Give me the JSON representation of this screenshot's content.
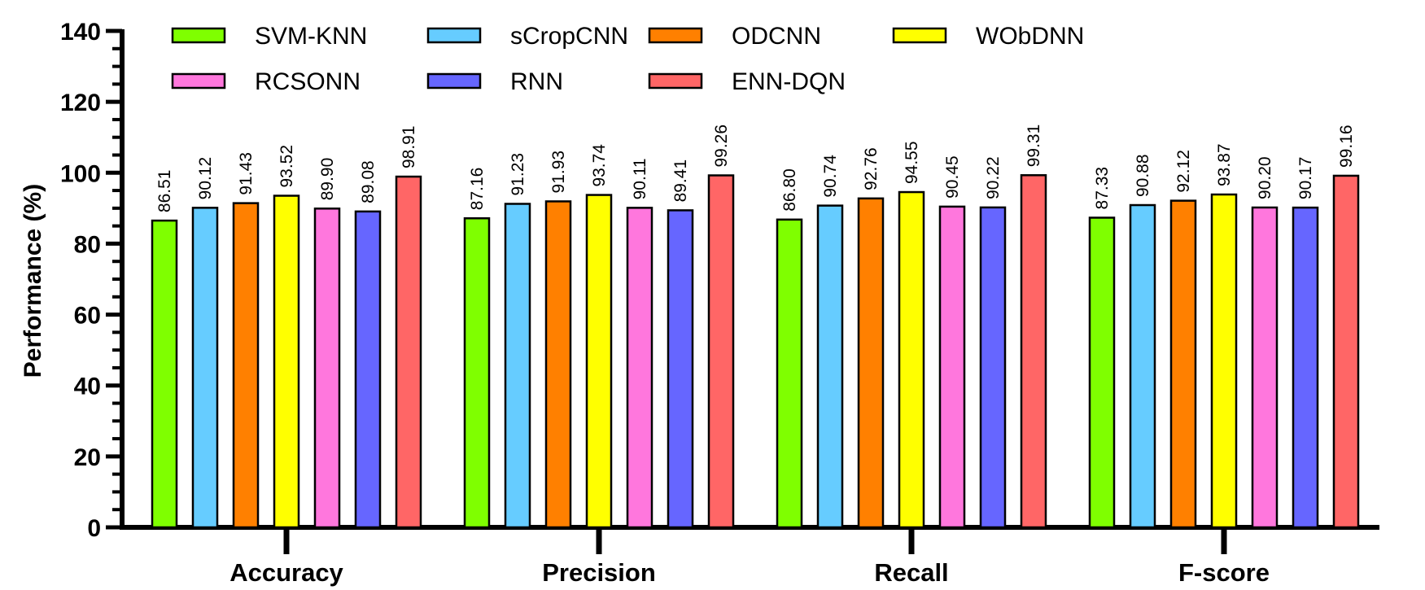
{
  "chart_data": {
    "type": "bar",
    "title": "",
    "ylabel": "Performance (%)",
    "xlabel": "",
    "ylim": [
      0,
      140
    ],
    "yticks": [
      0,
      20,
      40,
      60,
      80,
      100,
      120,
      140
    ],
    "grid": false,
    "legend_position": "top",
    "categories": [
      "Accuracy",
      "Precision",
      "Recall",
      "F-score"
    ],
    "series": [
      {
        "name": "SVM-KNN",
        "color": "#7FFF00",
        "values": [
          86.51,
          87.16,
          86.8,
          87.33
        ],
        "labels": [
          "86.51",
          "87.16",
          "86.80",
          "87.33"
        ]
      },
      {
        "name": "sCropCNN",
        "color": "#66CCFF",
        "values": [
          90.12,
          91.23,
          90.74,
          90.88
        ],
        "labels": [
          "90.12",
          "91.23",
          "90.74",
          "90.88"
        ]
      },
      {
        "name": "ODCNN",
        "color": "#FF8000",
        "values": [
          91.43,
          91.93,
          92.76,
          92.12
        ],
        "labels": [
          "91.43",
          "91.93",
          "92.76",
          "92.12"
        ]
      },
      {
        "name": "WObDNN",
        "color": "#FFFF00",
        "values": [
          93.52,
          93.74,
          94.55,
          93.87
        ],
        "labels": [
          "93.52",
          "93.74",
          "94.55",
          "93.87"
        ]
      },
      {
        "name": "RCSONN",
        "color": "#FF77DD",
        "values": [
          89.9,
          90.11,
          90.45,
          90.2
        ],
        "labels": [
          "89.90",
          "90.11",
          "90.45",
          "90.20"
        ]
      },
      {
        "name": "RNN",
        "color": "#6666FF",
        "values": [
          89.08,
          89.41,
          90.22,
          90.17
        ],
        "labels": [
          "89.08",
          "89.41",
          "90.22",
          "90.17"
        ]
      },
      {
        "name": "ENN-DQN",
        "color": "#FF6666",
        "values": [
          98.91,
          99.26,
          99.31,
          99.16
        ],
        "labels": [
          "98.91",
          "99.26",
          "99.31",
          "99.16"
        ]
      }
    ]
  }
}
